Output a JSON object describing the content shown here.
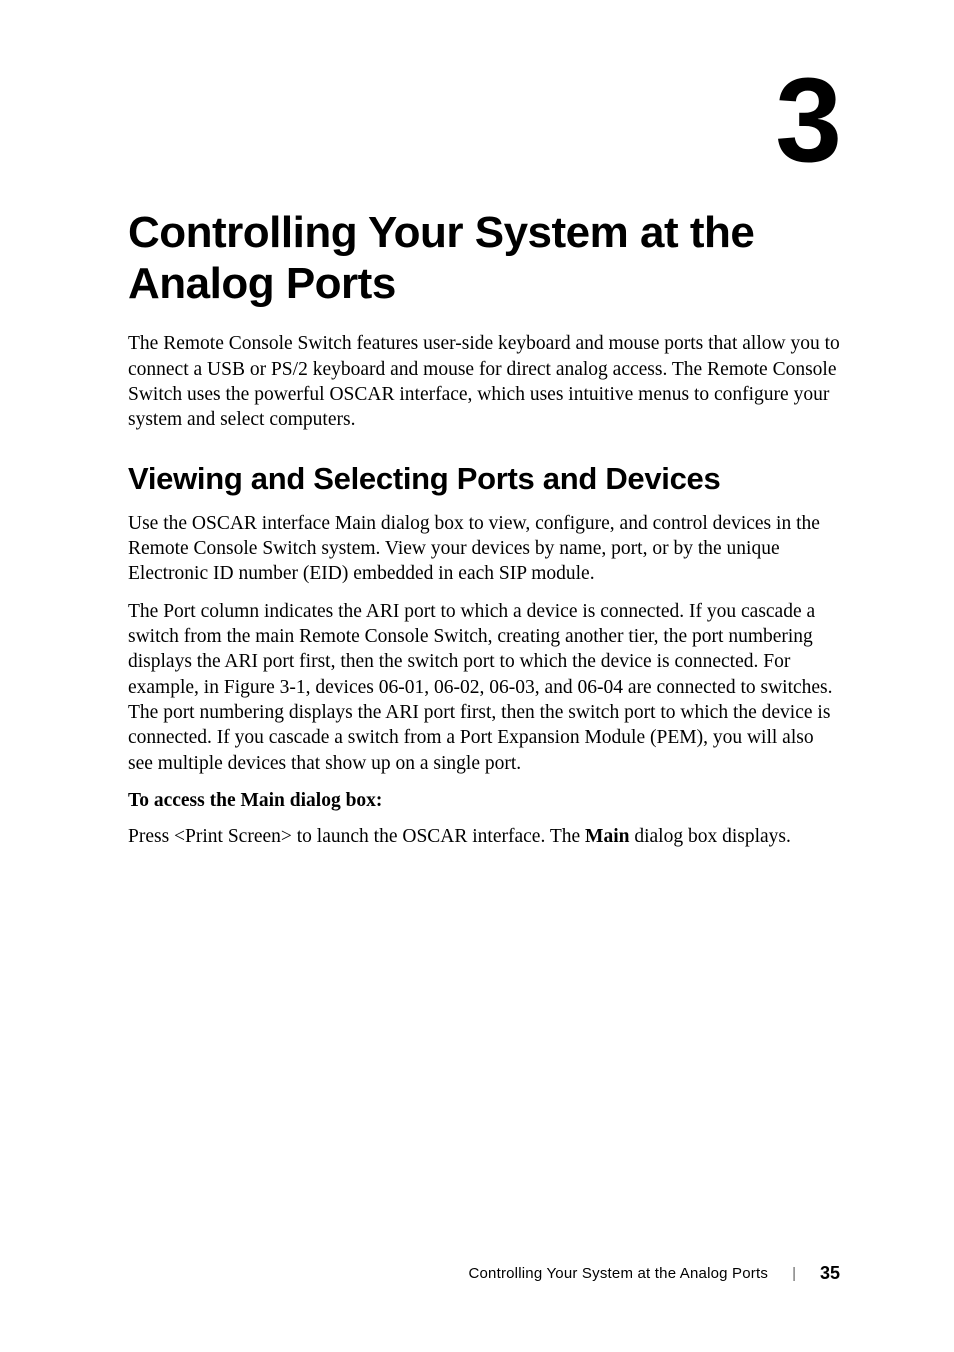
{
  "chapter": {
    "number": "3",
    "title": "Controlling Your System at the Analog Ports",
    "intro": "The Remote Console Switch features user-side keyboard and mouse ports that allow you to connect a USB or PS/2 keyboard and mouse for direct analog access. The Remote Console Switch uses the powerful OSCAR interface, which uses intuitive menus to configure your system and select computers."
  },
  "section": {
    "heading": "Viewing and Selecting Ports and Devices",
    "para1": "Use the OSCAR interface Main dialog box to view, configure, and control devices in the Remote Console Switch system. View your devices by name, port, or by the unique Electronic ID number (EID) embedded in each SIP module.",
    "para2": "The Port column indicates the ARI port to which a device is connected. If you cascade a switch from the main Remote Console Switch, creating another tier, the port numbering displays the ARI port first, then the switch port to which the device is connected. For example, in Figure 3-1, devices 06-01, 06-02, 06-03, and 06-04 are connected to switches. The port numbering displays the ARI port first, then the switch port to which the device is connected. If you cascade a switch from a Port Expansion Module (PEM), you will also see multiple devices that show up on a single port.",
    "subheading": "To access the Main dialog box:",
    "para3_a": "Press <Print Screen> to launch the OSCAR interface. The ",
    "para3_bold": "Main",
    "para3_b": " dialog box displays."
  },
  "footer": {
    "text": "Controlling Your System at the Analog Ports",
    "divider": "|",
    "page": "35"
  },
  "colors": {
    "background": "#ffffff",
    "text": "#000000",
    "divider": "#666666"
  },
  "typography": {
    "chapter_number_fontsize": 120,
    "chapter_title_fontsize": 44,
    "section_heading_fontsize": 31,
    "body_fontsize": 19.5,
    "footer_fontsize": 15,
    "footer_page_fontsize": 18
  }
}
